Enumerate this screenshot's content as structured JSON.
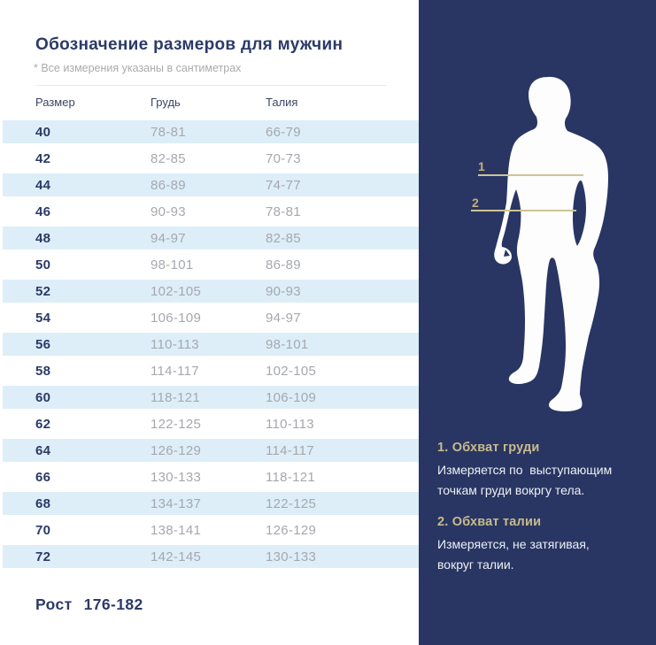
{
  "header": {
    "title": "Обозначение размеров для мужчин",
    "note": "* Все измерения указаны в сантиметрах"
  },
  "table": {
    "columns": [
      "Размер",
      "Грудь",
      "Талия"
    ],
    "rows": [
      [
        "40",
        "78-81",
        "66-79"
      ],
      [
        "42",
        "82-85",
        "70-73"
      ],
      [
        "44",
        "86-89",
        "74-77"
      ],
      [
        "46",
        "90-93",
        "78-81"
      ],
      [
        "48",
        "94-97",
        "82-85"
      ],
      [
        "50",
        "98-101",
        "86-89"
      ],
      [
        "52",
        "102-105",
        "90-93"
      ],
      [
        "54",
        "106-109",
        "94-97"
      ],
      [
        "56",
        "110-113",
        "98-101"
      ],
      [
        "58",
        "114-117",
        "102-105"
      ],
      [
        "60",
        "118-121",
        "106-109"
      ],
      [
        "62",
        "122-125",
        "110-113"
      ],
      [
        "64",
        "126-129",
        "114-117"
      ],
      [
        "66",
        "130-133",
        "118-121"
      ],
      [
        "68",
        "134-137",
        "122-125"
      ],
      [
        "70",
        "138-141",
        "126-129"
      ],
      [
        "72",
        "142-145",
        "130-133"
      ]
    ]
  },
  "footer": {
    "height_label": "Рост",
    "height_value": "176-182"
  },
  "figure": {
    "markers": [
      {
        "label": "1"
      },
      {
        "label": "2"
      }
    ]
  },
  "legend": [
    {
      "title": "1. Обхват груди",
      "lines": [
        "Измеряется по  выступающим",
        "точкам груди вокргу тела."
      ]
    },
    {
      "title": "2. Обхват талии",
      "lines": [
        "Измеряется, не затягивая,",
        "вокруг талии."
      ]
    }
  ],
  "colors": {
    "navy": "#293663",
    "navy-text": "#2b3a68",
    "stripe": "#ddeef8",
    "muted": "#a5a8ae",
    "muted-light": "#ababab",
    "gold-line": "#cfc494",
    "gold-text": "#c8bb8b",
    "panel-text": "#edf0f5",
    "silhouette": "#fdfdfd"
  }
}
